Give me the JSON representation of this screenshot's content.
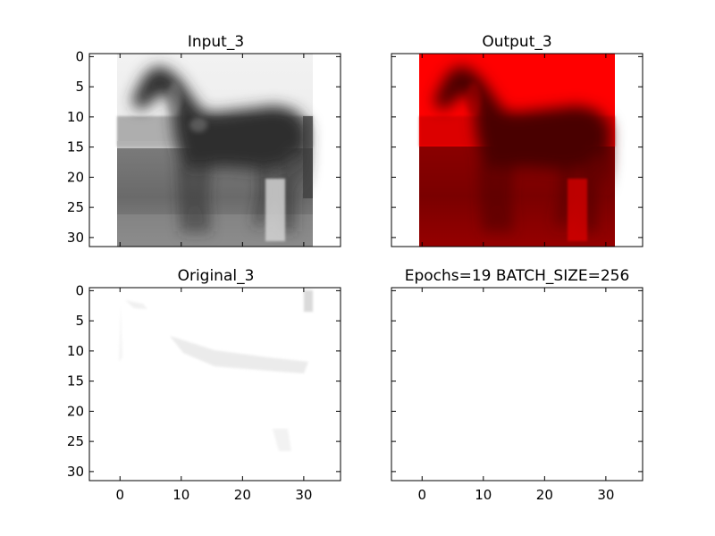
{
  "chart_data": [
    {
      "type": "image",
      "title": "Input_3",
      "xlim": [
        -5,
        36
      ],
      "ylim": [
        31.5,
        -0.5
      ],
      "xticks": [],
      "yticks": [
        0,
        5,
        10,
        15,
        20,
        25,
        30
      ],
      "image_content": "grayscale horse on grass field",
      "colormap": "gray"
    },
    {
      "type": "image",
      "title": "Output_3",
      "xlim": [
        -5,
        36
      ],
      "ylim": [
        31.5,
        -0.5
      ],
      "xticks": [],
      "yticks": [],
      "image_content": "red-tinted horse on grass field",
      "colormap": "red"
    },
    {
      "type": "image",
      "title": "Original_3",
      "xlim": [
        -5,
        36
      ],
      "ylim": [
        31.5,
        -0.5
      ],
      "xticks": [
        0,
        10,
        20,
        30
      ],
      "yticks": [
        0,
        5,
        10,
        15,
        20,
        25,
        30
      ],
      "image_content": "nearly white faint ghost image",
      "colormap": "gray"
    },
    {
      "type": "image",
      "title": "Epochs=19 BATCH_SIZE=256",
      "xlim": [
        -5,
        36
      ],
      "ylim": [
        31.5,
        -0.5
      ],
      "xticks": [
        0,
        10,
        20,
        30
      ],
      "yticks": [],
      "image_content": "blank",
      "colormap": "none"
    }
  ]
}
